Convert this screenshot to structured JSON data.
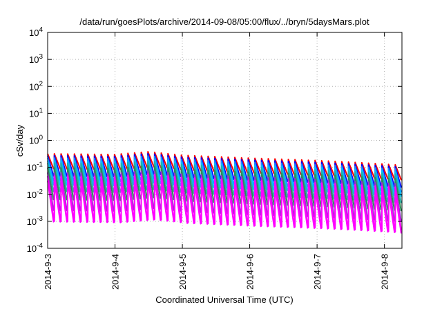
{
  "chart_data": {
    "type": "line",
    "title": "/data/run/goesPlots/archive/2014-09-08/05:00/flux/../bryn/5daysMars.plot",
    "xlabel": "Coordinated Universal Time (UTC)",
    "ylabel": "cSv/day",
    "yscale": "log",
    "ylim": [
      0.0001,
      10000
    ],
    "xlim_days": [
      0,
      5.26
    ],
    "grid": true,
    "y_ticks": [
      {
        "base": "10",
        "exp": "-4"
      },
      {
        "base": "10",
        "exp": "-3"
      },
      {
        "base": "10",
        "exp": "-2"
      },
      {
        "base": "10",
        "exp": "-1"
      },
      {
        "base": "10",
        "exp": "0"
      },
      {
        "base": "10",
        "exp": "1"
      },
      {
        "base": "10",
        "exp": "2"
      },
      {
        "base": "10",
        "exp": "3"
      },
      {
        "base": "10",
        "exp": "4"
      }
    ],
    "x_ticks": [
      "2014-9-3",
      "2014-9-4",
      "2014-9-5",
      "2014-9-6",
      "2014-9-7",
      "2014-9-8"
    ],
    "oscillation": {
      "cycles": 53,
      "peak_trend_days": [
        0,
        1.0,
        1.5,
        2.0,
        3.0,
        4.0,
        5.26
      ],
      "peak_trend_values": [
        0.32,
        0.3,
        0.38,
        0.28,
        0.22,
        0.18,
        0.12
      ]
    },
    "series": [
      {
        "color": "#ff0000",
        "peak_ratio": 1.0,
        "trough_ratio": 0.28
      },
      {
        "color": "#0000ff",
        "peak_ratio": 0.85,
        "trough_ratio": 0.15
      },
      {
        "color": "#1e90ff",
        "peak_ratio": 0.7,
        "trough_ratio": 0.1
      },
      {
        "color": "#00bfff",
        "peak_ratio": 0.55,
        "trough_ratio": 0.07
      },
      {
        "color": "#20b2aa",
        "peak_ratio": 0.45,
        "trough_ratio": 0.04
      },
      {
        "color": "#2e8b57",
        "peak_ratio": 0.3,
        "trough_ratio": 0.02
      },
      {
        "color": "#9932cc",
        "peak_ratio": 0.2,
        "trough_ratio": 0.008
      },
      {
        "color": "#ff00ff",
        "peak_ratio": 0.15,
        "trough_ratio": 0.004
      },
      {
        "color": "#ff00ff",
        "peak_ratio": 0.1,
        "trough_ratio": 0.003
      }
    ]
  }
}
